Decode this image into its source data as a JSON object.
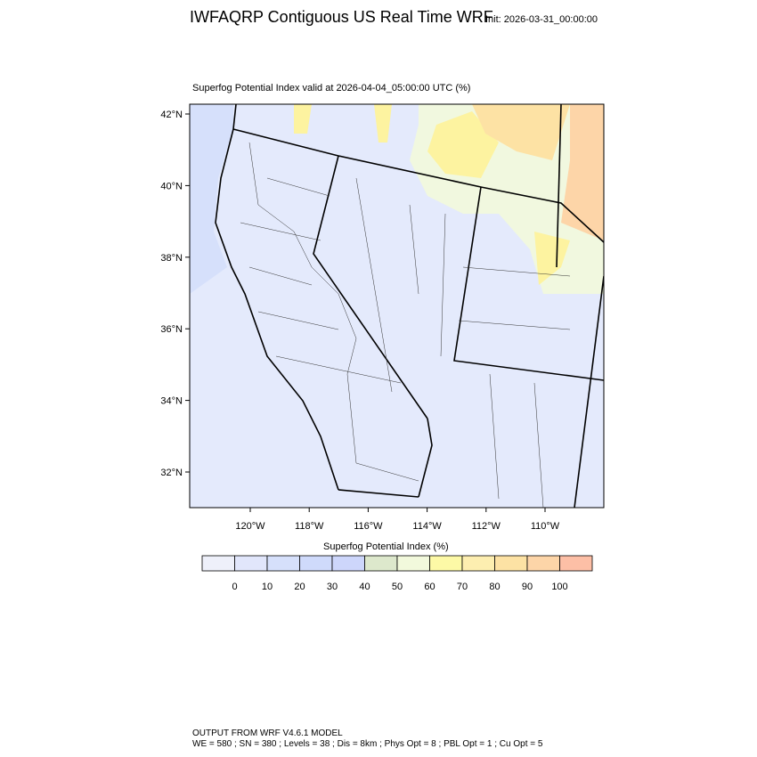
{
  "header": {
    "title": "IWFAQRP Contiguous US Real Time WRF",
    "init": "Init: 2026-03-31_00:00:00"
  },
  "map": {
    "title": "Superfog Potential Index valid at 2026-04-04_05:00:00 UTC   (%)",
    "lat_ticks": [
      {
        "value": 42,
        "label": "42°N"
      },
      {
        "value": 40,
        "label": "40°N"
      },
      {
        "value": 38,
        "label": "38°N"
      },
      {
        "value": 36,
        "label": "36°N"
      },
      {
        "value": 34,
        "label": "34°N"
      },
      {
        "value": 32,
        "label": "32°N"
      }
    ],
    "lon_ticks": [
      {
        "value": -120,
        "label": "120°W"
      },
      {
        "value": -118,
        "label": "118°W"
      },
      {
        "value": -116,
        "label": "116°W"
      },
      {
        "value": -114,
        "label": "114°W"
      },
      {
        "value": -112,
        "label": "112°W"
      },
      {
        "value": -110,
        "label": "110°W"
      }
    ]
  },
  "colorbar": {
    "label": "Superfog Potential Index  (%)",
    "colors": [
      "#eef0fa",
      "#e1e6fb",
      "#d6e0fb",
      "#cfdafb",
      "#cdd6fb",
      "#dde8cc",
      "#f2f9dc",
      "#fdf9a6",
      "#fdeeb0",
      "#fde2a4",
      "#fdd5a8",
      "#fdbfa6"
    ],
    "ticks": [
      0,
      10,
      20,
      30,
      40,
      50,
      60,
      70,
      80,
      90,
      100
    ]
  },
  "footer": {
    "line1": "OUTPUT FROM WRF V4.6.1 MODEL",
    "line2": "WE = 580 ; SN = 380 ; Levels = 38 ; Dis = 8km ; Phys Opt = 8 ; PBL Opt = 1 ; Cu Opt = 5"
  }
}
